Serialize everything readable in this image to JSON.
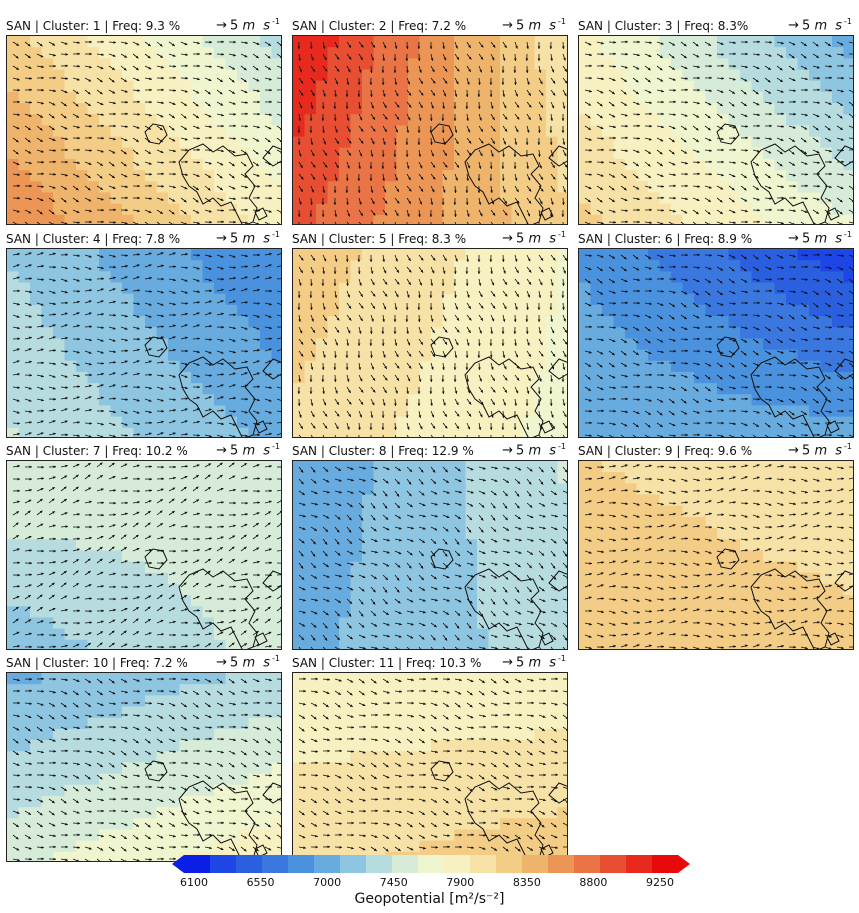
{
  "chart_data": {
    "type": "heatmap",
    "variable_label": "Geopotential [m²/s⁻²]",
    "vector_reference": {
      "arrow": "→",
      "magnitude": "5",
      "unit": "m s",
      "exponent": "-1"
    },
    "colorbar": {
      "min": 6100,
      "max": 9250,
      "ticks": [
        "6100",
        "6550",
        "7000",
        "7450",
        "7900",
        "8350",
        "8800",
        "9250"
      ],
      "colors": [
        "#0a1ee6",
        "#1e46e6",
        "#2a5fe0",
        "#3a78e0",
        "#4a92de",
        "#68abde",
        "#8ec5e0",
        "#b6dce0",
        "#d6ecd8",
        "#eef5cf",
        "#f7f0c0",
        "#f6e2a6",
        "#f3cc86",
        "#efb46c",
        "#ec9656",
        "#ea7446",
        "#e84e32",
        "#e82a1e",
        "#e80a0a"
      ]
    },
    "panels": [
      {
        "title": "SAN | Cluster: 1 | Freq: 9.3 %",
        "cluster": 1,
        "freq_pct": 9.3,
        "field_nw": 8150,
        "field_ne": 7350,
        "field_sw": 8600,
        "field_se": 7850,
        "wind_u": 3,
        "wind_v": -1
      },
      {
        "title": "SAN | Cluster: 2 | Freq: 7.2 %",
        "cluster": 2,
        "freq_pct": 7.2,
        "field_nw": 9100,
        "field_ne": 7950,
        "field_sw": 8800,
        "field_se": 8100,
        "wind_u": 1,
        "wind_v": -3
      },
      {
        "title": "SAN | Cluster: 3 | Freq: 8.3%",
        "cluster": 3,
        "freq_pct": 8.3,
        "field_nw": 7800,
        "field_ne": 7000,
        "field_sw": 8150,
        "field_se": 7600,
        "wind_u": 3,
        "wind_v": -1
      },
      {
        "title": "SAN | Cluster: 4 | Freq: 7.8 %",
        "cluster": 4,
        "freq_pct": 7.8,
        "field_nw": 7250,
        "field_ne": 6750,
        "field_sw": 7450,
        "field_se": 7050,
        "wind_u": 3,
        "wind_v": 0
      },
      {
        "title": "SAN | Cluster: 5 | Freq: 8.3 %",
        "cluster": 5,
        "freq_pct": 8.3,
        "field_nw": 8200,
        "field_ne": 7750,
        "field_sw": 8050,
        "field_se": 7700,
        "wind_u": 1,
        "wind_v": -3
      },
      {
        "title": "SAN | Cluster: 6 | Freq: 8.9 %",
        "cluster": 6,
        "freq_pct": 8.9,
        "field_nw": 6900,
        "field_ne": 6300,
        "field_sw": 7100,
        "field_se": 7000,
        "wind_u": 3,
        "wind_v": -1
      },
      {
        "title": "SAN | Cluster: 7 | Freq: 10.2 %",
        "cluster": 7,
        "freq_pct": 10.2,
        "field_nw": 7600,
        "field_ne": 7500,
        "field_sw": 7150,
        "field_se": 7500,
        "wind_u": 3,
        "wind_v": 1
      },
      {
        "title": "SAN | Cluster: 8 | Freq: 12.9 %",
        "cluster": 8,
        "freq_pct": 12.9,
        "field_nw": 6950,
        "field_ne": 7450,
        "field_sw": 7050,
        "field_se": 7350,
        "wind_u": 3,
        "wind_v": -2
      },
      {
        "title": "SAN | Cluster: 9 | Freq: 9.6 %",
        "cluster": 9,
        "freq_pct": 9.6,
        "field_nw": 8100,
        "field_ne": 7950,
        "field_sw": 8250,
        "field_se": 8150,
        "wind_u": 2,
        "wind_v": 0
      },
      {
        "title": "SAN | Cluster: 10 | Freq: 7.2 %",
        "cluster": 10,
        "freq_pct": 7.2,
        "field_nw": 7050,
        "field_ne": 7300,
        "field_sw": 7550,
        "field_se": 7900,
        "wind_u": 3,
        "wind_v": -1
      },
      {
        "title": "SAN | Cluster: 11 | Freq: 10.3 %",
        "cluster": 11,
        "freq_pct": 10.3,
        "field_nw": 7800,
        "field_ne": 7800,
        "field_sw": 8050,
        "field_se": 8200,
        "wind_u": 3,
        "wind_v": -1
      }
    ]
  }
}
